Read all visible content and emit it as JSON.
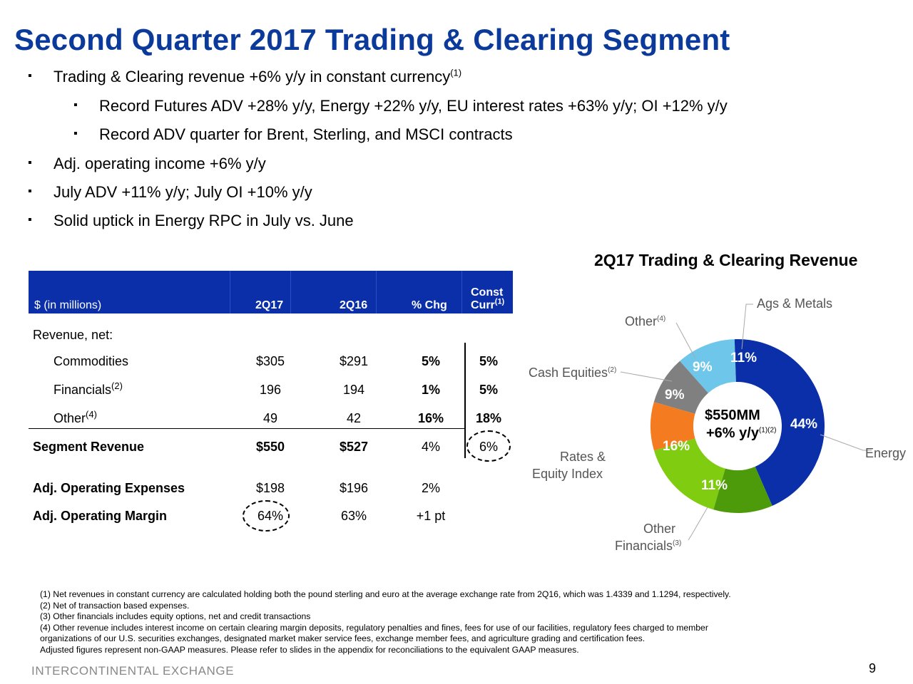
{
  "title": "Second Quarter 2017 Trading & Clearing Segment",
  "bullets": {
    "b1": "Trading & Clearing revenue +6% y/y in constant currency",
    "b1_sup": "(1)",
    "b1a": "Record Futures ADV +28% y/y, Energy +22% y/y, EU interest rates +63% y/y; OI +12% y/y",
    "b1b": "Record ADV quarter for Brent, Sterling, and MSCI contracts",
    "b2": "Adj. operating income +6% y/y",
    "b3": "July ADV +11% y/y; July OI +10% y/y",
    "b4": "Solid uptick in Energy RPC in July vs. June",
    "mark": "▪"
  },
  "table": {
    "headers": {
      "label": "$ (in millions)",
      "c1": "2Q17",
      "c2": "2Q16",
      "c3": "% Chg",
      "c4a": "Const",
      "c4b": "Curr",
      "c4_sup": "(1)"
    },
    "revenue_net": "Revenue, net:",
    "rows": [
      {
        "label": "Commodities",
        "sup": "",
        "c1": "$305",
        "c2": "$291",
        "c3": "5%",
        "c4": "5%"
      },
      {
        "label": "Financials",
        "sup": "(2)",
        "c1": "196",
        "c2": "194",
        "c3": "1%",
        "c4": "5%"
      },
      {
        "label": "Other",
        "sup": "(4)",
        "c1": "49",
        "c2": "42",
        "c3": "16%",
        "c4": "18%"
      },
      {
        "label": "Segment Revenue",
        "sup": "",
        "c1": "$550",
        "c2": "$527",
        "c3": "4%",
        "c4": "6%"
      },
      {
        "label": "Adj. Operating Expenses",
        "sup": "",
        "c1": "$198",
        "c2": "$196",
        "c3": "2%",
        "c4": ""
      },
      {
        "label": "Adj. Operating Margin",
        "sup": "",
        "c1": "64%",
        "c2": "63%",
        "c3": "+1 pt",
        "c4": ""
      }
    ]
  },
  "chart_data": {
    "type": "pie",
    "title": "2Q17 Trading & Clearing Revenue",
    "center_line1": "$550MM",
    "center_line2": "+6% y/y",
    "center_sup": "(1)(2)",
    "slices": [
      {
        "name": "Energy",
        "value": 44,
        "label": "44%",
        "color": "#0a2fa8"
      },
      {
        "name": "Other Financials",
        "sup": "(3)",
        "value": 11,
        "label": "11%",
        "color": "#4d9a0a"
      },
      {
        "name": "Rates & Equity Index",
        "value": 16,
        "label": "16%",
        "color": "#7fcc10"
      },
      {
        "name": "Cash Equities",
        "sup": "(2)",
        "value": 9,
        "label": "9%",
        "color": "#f47b20"
      },
      {
        "name": "Other",
        "sup": "(4)",
        "value": 9,
        "label": "9%",
        "color": "#808080"
      },
      {
        "name": "Ags & Metals",
        "value": 11,
        "label": "11%",
        "color": "#6ec6ea"
      }
    ],
    "labels": {
      "ags": "Ags & Metals",
      "other": "Other",
      "other_sup": "(4)",
      "cash": "Cash Equities",
      "cash_sup": "(2)",
      "rates1": "Rates &",
      "rates2": "Equity Index",
      "energy": "Energy",
      "ofin1": "Other",
      "ofin2": "Financials",
      "ofin_sup": "(3)"
    }
  },
  "footnotes": [
    "(1) Net revenues in constant currency are calculated holding both the pound sterling and euro at the average exchange rate from 2Q16,  which was 1.4339 and 1.1294, respectively.",
    "(2) Net of transaction based expenses.",
    "(3) Other financials includes equity options, net and credit transactions",
    "(4) Other revenue includes interest income on certain clearing margin deposits, regulatory penalties and fines, fees for use of our facilities, regulatory fees charged to member",
    "organizations of our U.S. securities exchanges, designated market maker service fees, exchange member fees, and agriculture grading and certification fees.",
    "Adjusted figures represent non-GAAP measures. Please refer to slides in the appendix for reconciliations to the equivalent GAAP measures."
  ],
  "logo": "INTERCONTINENTAL EXCHANGE",
  "page_number": "9"
}
